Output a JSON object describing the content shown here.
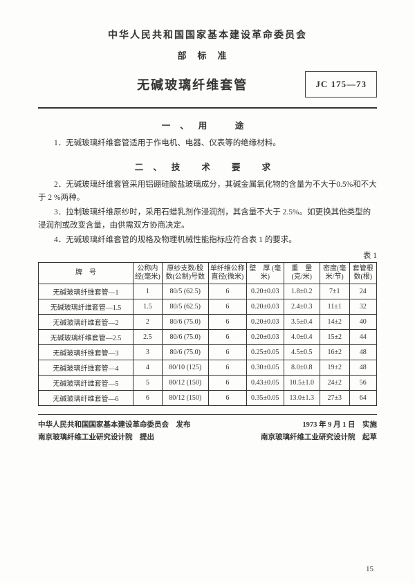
{
  "header": {
    "org": "中华人民共和国国家基本建设革命委员会",
    "sub": "部标准",
    "title": "无碱玻璃纤维套管",
    "std_code": "JC 175—73"
  },
  "section1": {
    "title": "一、用　途",
    "p1": "1．无碱玻璃纤维套管适用于作电机、电器、仪表等的绝缘材料。"
  },
  "section2": {
    "title": "二、技 术 要 求",
    "p2": "2．无碱玻璃纤维套管采用铝硼硅酸盐玻璃成分，其碱金属氧化物的含量为不大于0.5%和不大于 2 %两种。",
    "p3": "3．拉制玻璃纤维原纱时，采用石蜡乳剂作浸润剂，其含量不大于 2.5%。如更换其他类型的浸润剂或改变含量，由供需双方协商决定。",
    "p4": "4．无碱玻璃纤维套管的规格及物理机械性能指标应符合表 1 的要求。"
  },
  "table": {
    "label": "表 1",
    "headers": {
      "h1": "牌　号",
      "h2": "公称内经(毫米)",
      "h3": "原纱支数/股数(公制)号数",
      "h4": "单纤维公称直径(微米)",
      "h5": "壁　厚 (毫米)",
      "h6": "重　量 (克/米)",
      "h7": "密度(毫米/节)",
      "h8": "套管根数(根)"
    },
    "rows": [
      {
        "name": "无碱玻璃纤维套管—1",
        "d": "1",
        "yarn": "80/5 (62.5)",
        "fil": "6",
        "wall": "0.20±0.03",
        "wt": "1.8±0.2",
        "den": "7±1",
        "cnt": "24"
      },
      {
        "name": "无碱玻璃纤维套管—1.5",
        "d": "1.5",
        "yarn": "80/5 (62.5)",
        "fil": "6",
        "wall": "0.20±0.03",
        "wt": "2.4±0.3",
        "den": "11±1",
        "cnt": "32"
      },
      {
        "name": "无碱玻璃纤维套管—2",
        "d": "2",
        "yarn": "80/6 (75.0)",
        "fil": "6",
        "wall": "0.20±0.03",
        "wt": "3.5±0.4",
        "den": "14±2",
        "cnt": "40"
      },
      {
        "name": "无碱玻璃纤维套管—2.5",
        "d": "2.5",
        "yarn": "80/6 (75.0)",
        "fil": "6",
        "wall": "0.20±0.03",
        "wt": "4.0±0.4",
        "den": "15±2",
        "cnt": "44"
      },
      {
        "name": "无碱玻璃纤维套管—3",
        "d": "3",
        "yarn": "80/6 (75.0)",
        "fil": "6",
        "wall": "0.25±0.05",
        "wt": "4.5±0.5",
        "den": "16±2",
        "cnt": "48"
      },
      {
        "name": "无碱玻璃纤维套管—4",
        "d": "4",
        "yarn": "80/10 (125)",
        "fil": "6",
        "wall": "0.30±0.05",
        "wt": "8.0±0.8",
        "den": "19±2",
        "cnt": "48"
      },
      {
        "name": "无碱玻璃纤维套管—5",
        "d": "5",
        "yarn": "80/12 (150)",
        "fil": "6",
        "wall": "0.43±0.05",
        "wt": "10.5±1.0",
        "den": "24±2",
        "cnt": "56"
      },
      {
        "name": "无碱玻璃纤维套管—6",
        "d": "6",
        "yarn": "80/12 (150)",
        "fil": "6",
        "wall": "0.35±0.05",
        "wt": "13.0±1.3",
        "den": "27±3",
        "cnt": "64"
      }
    ]
  },
  "footer": {
    "row1_left": "中华人民共和国国家基本建设革命委员会　发布",
    "row1_right": "1973 年 9 月 1 日　实施",
    "row2_left": "南京玻璃纤维工业研究设计院　提出",
    "row2_right": "南京玻璃纤维工业研究设计院　起草"
  },
  "page_num": "15"
}
